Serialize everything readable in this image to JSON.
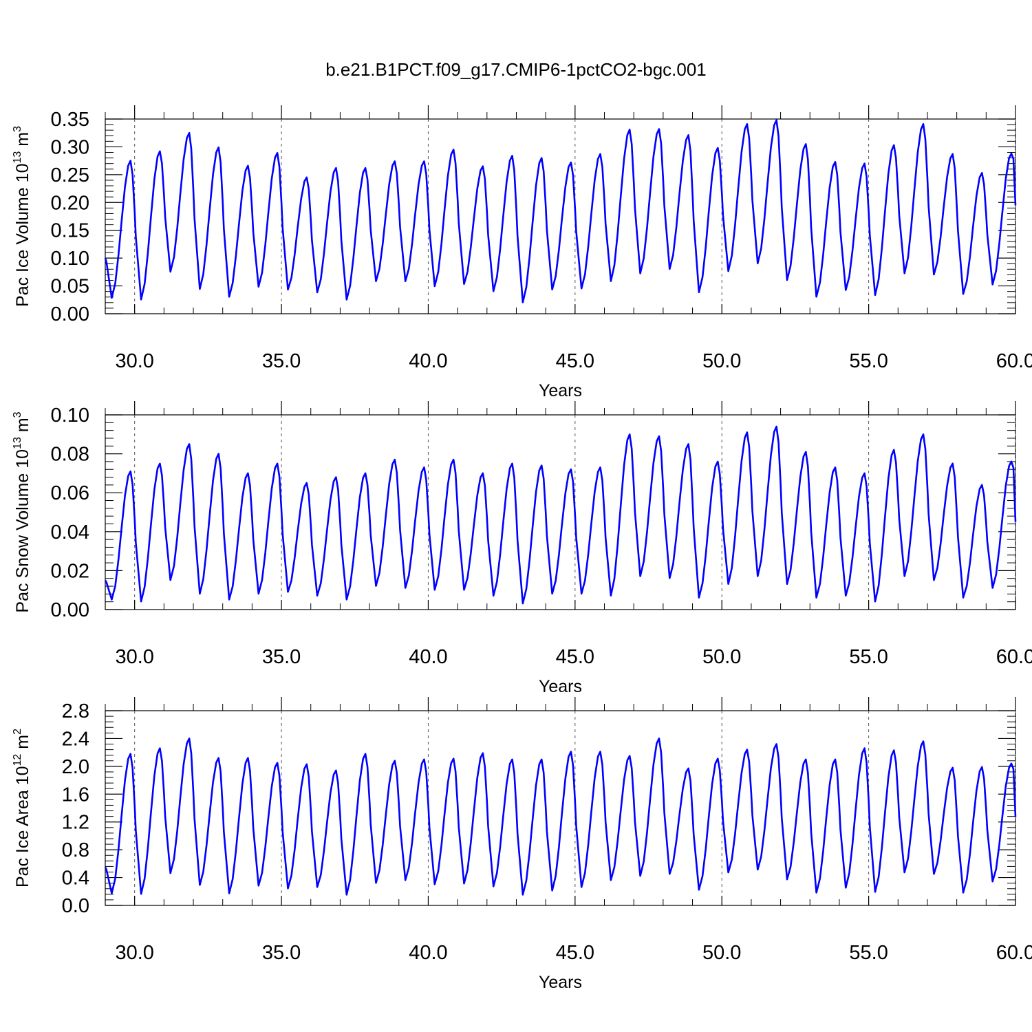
{
  "title": "b.e21.B1PCT.f09_g17.CMIP6-1pctCO2-bgc.001",
  "colors": {
    "series": "#0000ff",
    "axis": "#000000",
    "grid": "#555555"
  },
  "chart_data": [
    {
      "type": "line",
      "ylabel": {
        "main": "Pac Ice Volume 10",
        "sup1": "13",
        "mid": " m",
        "sup2": "3"
      },
      "xlabel": "Years",
      "xlim": [
        29.0,
        60.0
      ],
      "ylim": [
        0.0,
        0.35
      ],
      "xticks": [
        30,
        35,
        40,
        45,
        50,
        55,
        60
      ],
      "xtick_labels": [
        "30.0",
        "35.0",
        "40.0",
        "45.0",
        "50.0",
        "55.0",
        "60.0"
      ],
      "yticks": [
        0.0,
        0.05,
        0.1,
        0.15,
        0.2,
        0.25,
        0.3,
        0.35
      ],
      "ytick_labels": [
        "0.00",
        "0.05",
        "0.10",
        "0.15",
        "0.20",
        "0.25",
        "0.30",
        "0.35"
      ],
      "grid": "vertical dashed at major x ticks",
      "series": [
        {
          "peaks": [
            0.275,
            0.292,
            0.325,
            0.299,
            0.266,
            0.289,
            0.245,
            0.262,
            0.262,
            0.274,
            0.274,
            0.295,
            0.265,
            0.284,
            0.28,
            0.272,
            0.287,
            0.331,
            0.332,
            0.321,
            0.298,
            0.341,
            0.348,
            0.305,
            0.273,
            0.27,
            0.303,
            0.341,
            0.287,
            0.253,
            0.288
          ],
          "troughs": [
            0.028,
            0.025,
            0.075,
            0.044,
            0.03,
            0.048,
            0.043,
            0.038,
            0.025,
            0.058,
            0.058,
            0.049,
            0.053,
            0.04,
            0.02,
            0.043,
            0.045,
            0.058,
            0.072,
            0.08,
            0.038,
            0.076,
            0.09,
            0.06,
            0.03,
            0.042,
            0.033,
            0.072,
            0.07,
            0.035,
            0.052
          ],
          "start": 0.1,
          "end": 0.195
        }
      ]
    },
    {
      "type": "line",
      "ylabel": {
        "main": "Pac Snow Volume 10",
        "sup1": "13",
        "mid": " m",
        "sup2": "3"
      },
      "xlabel": "Years",
      "xlim": [
        29.0,
        60.0
      ],
      "ylim": [
        0.0,
        0.1
      ],
      "xticks": [
        30,
        35,
        40,
        45,
        50,
        55,
        60
      ],
      "xtick_labels": [
        "30.0",
        "35.0",
        "40.0",
        "45.0",
        "50.0",
        "55.0",
        "60.0"
      ],
      "yticks": [
        0.0,
        0.02,
        0.04,
        0.06,
        0.08,
        0.1
      ],
      "ytick_labels": [
        "0.00",
        "0.02",
        "0.04",
        "0.06",
        "0.08",
        "0.10"
      ],
      "grid": "vertical dashed at major x ticks",
      "series": [
        {
          "peaks": [
            0.071,
            0.075,
            0.085,
            0.08,
            0.07,
            0.075,
            0.065,
            0.068,
            0.07,
            0.077,
            0.073,
            0.077,
            0.07,
            0.075,
            0.074,
            0.072,
            0.073,
            0.09,
            0.089,
            0.085,
            0.076,
            0.091,
            0.094,
            0.081,
            0.073,
            0.07,
            0.082,
            0.09,
            0.075,
            0.064,
            0.076
          ],
          "troughs": [
            0.005,
            0.004,
            0.015,
            0.008,
            0.005,
            0.008,
            0.009,
            0.007,
            0.005,
            0.012,
            0.011,
            0.01,
            0.01,
            0.007,
            0.003,
            0.008,
            0.008,
            0.007,
            0.017,
            0.016,
            0.006,
            0.013,
            0.017,
            0.013,
            0.006,
            0.007,
            0.004,
            0.017,
            0.015,
            0.006,
            0.011
          ],
          "start": 0.015,
          "end": 0.045
        }
      ]
    },
    {
      "type": "line",
      "ylabel": {
        "main": "Pac Ice Area 10",
        "sup1": "12",
        "mid": " m",
        "sup2": "2"
      },
      "xlabel": "Years",
      "xlim": [
        29.0,
        60.0
      ],
      "ylim": [
        0.0,
        2.8
      ],
      "xticks": [
        30,
        35,
        40,
        45,
        50,
        55,
        60
      ],
      "xtick_labels": [
        "30.0",
        "35.0",
        "40.0",
        "45.0",
        "50.0",
        "55.0",
        "60.0"
      ],
      "yticks": [
        0.0,
        0.4,
        0.8,
        1.2,
        1.6,
        2.0,
        2.4,
        2.8
      ],
      "ytick_labels": [
        "0.0",
        "0.4",
        "0.8",
        "1.2",
        "1.6",
        "2.0",
        "2.4",
        "2.8"
      ],
      "grid": "vertical dashed at major x ticks",
      "series": [
        {
          "peaks": [
            2.18,
            2.26,
            2.4,
            2.12,
            2.12,
            2.05,
            2.03,
            1.94,
            2.18,
            2.08,
            2.1,
            2.11,
            2.19,
            2.1,
            2.1,
            2.21,
            2.21,
            2.15,
            2.4,
            1.97,
            2.11,
            2.24,
            2.32,
            2.1,
            2.1,
            2.26,
            2.23,
            2.36,
            1.98,
            1.99,
            2.04
          ],
          "troughs": [
            0.17,
            0.16,
            0.46,
            0.29,
            0.17,
            0.28,
            0.24,
            0.26,
            0.15,
            0.32,
            0.36,
            0.3,
            0.31,
            0.27,
            0.15,
            0.21,
            0.26,
            0.36,
            0.42,
            0.45,
            0.22,
            0.47,
            0.51,
            0.37,
            0.18,
            0.25,
            0.19,
            0.47,
            0.45,
            0.18,
            0.34
          ],
          "start": 0.55,
          "end": 1.27
        }
      ]
    }
  ]
}
